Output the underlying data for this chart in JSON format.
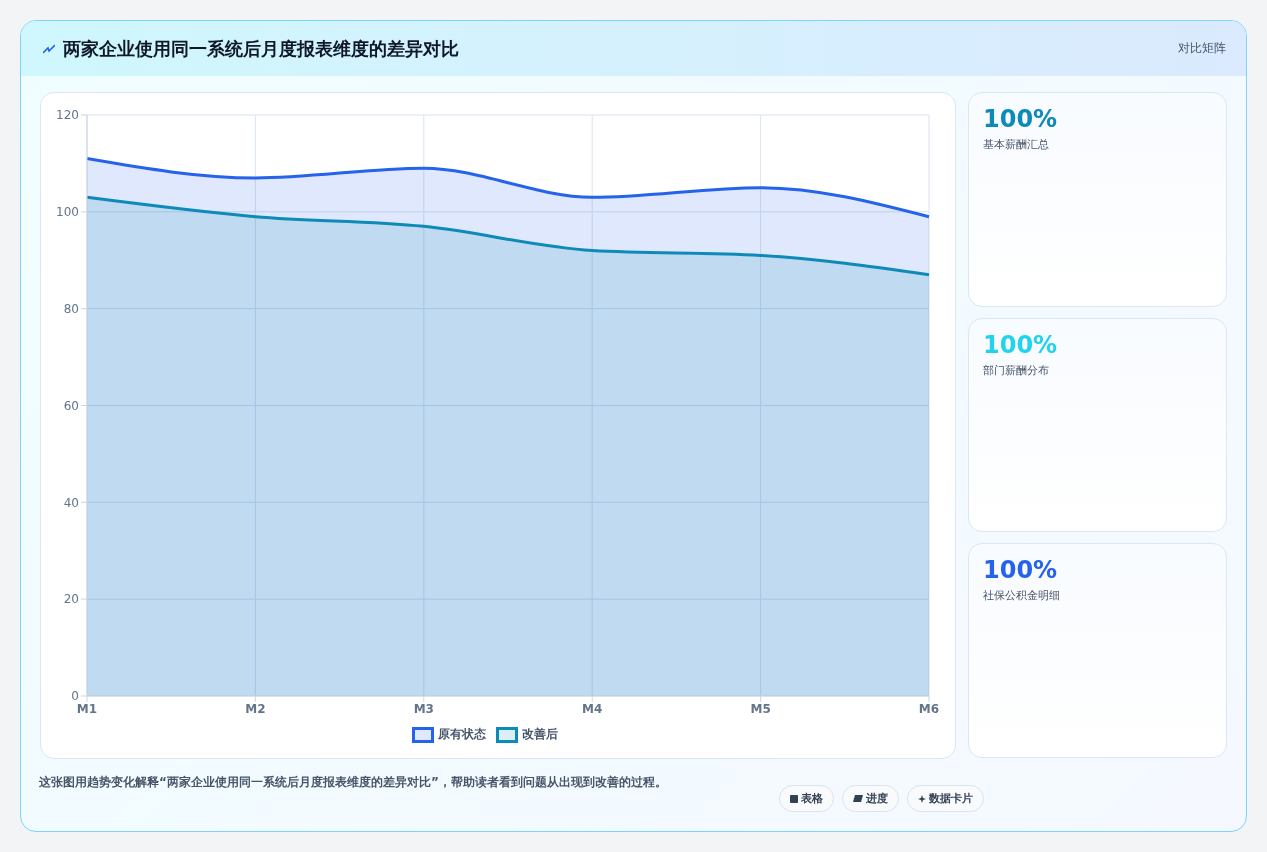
{
  "chart_data": [
    {
      "type": "area",
      "title": "两家企业使用同一系统后月度报表维度的差异对比",
      "annotations": [
        "对比矩阵",
        "这张图用趋势变化解释“两家企业使用同一系统后月度报表维度的差异对比”，帮助读者看到问题从出现到改善的过程。",
        "表格",
        "进度",
        "数据卡片"
      ],
      "categories": [
        "M1",
        "M2",
        "M3",
        "M4",
        "M5",
        "M6"
      ],
      "series": [
        {
          "name": "原有状态",
          "color": "#2563eb",
          "values": [
            111,
            107,
            109,
            103,
            105,
            99
          ]
        },
        {
          "name": "改善后",
          "color": "#0e8ab8",
          "values": [
            103,
            99,
            97,
            92,
            91,
            87
          ]
        }
      ],
      "ylim": [
        0,
        120
      ],
      "yticks": [
        0,
        20,
        40,
        60,
        80,
        100,
        120
      ],
      "grid": true,
      "legend": "bottom"
    },
    {
      "type": "other",
      "categories": [
        "基本薪酬汇总",
        "部门薪酬分布",
        "社保公积金明细"
      ],
      "value_labels": [
        "100%",
        "100%",
        "100%"
      ]
    }
  ]
}
